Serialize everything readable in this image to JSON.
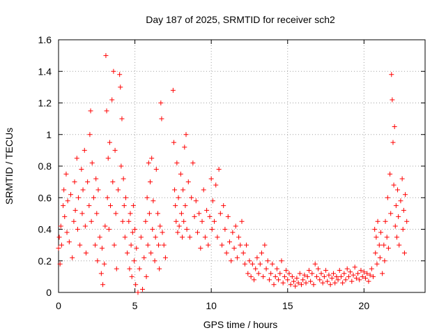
{
  "chart_data": {
    "type": "scatter",
    "title": "Day 187 of 2025, SRMTID for receiver sch2",
    "xlabel": "GPS time / hours",
    "ylabel": "SRMTID / TECUs",
    "xlim": [
      0,
      24
    ],
    "ylim": [
      0,
      1.6
    ],
    "grid": true,
    "marker": "+",
    "series_color": "#ff0000",
    "x_ticks": [
      {
        "value": 0,
        "label": "0"
      },
      {
        "value": 5,
        "label": "5"
      },
      {
        "value": 10,
        "label": "10"
      },
      {
        "value": 15,
        "label": "15"
      },
      {
        "value": 20,
        "label": "20"
      }
    ],
    "y_ticks": [
      {
        "value": 0,
        "label": "0"
      },
      {
        "value": 0.2,
        "label": "0.2"
      },
      {
        "value": 0.4,
        "label": "0.4"
      },
      {
        "value": 0.6,
        "label": "0.6"
      },
      {
        "value": 0.8,
        "label": "0.8"
      },
      {
        "value": 1.0,
        "label": "1"
      },
      {
        "value": 1.2,
        "label": "1.2"
      },
      {
        "value": 1.4,
        "label": "1.4"
      },
      {
        "value": 1.6,
        "label": "1.6"
      }
    ],
    "series": [
      {
        "name": "SRMTID",
        "points": [
          [
            0.0,
            0.28
          ],
          [
            0.05,
            0.35
          ],
          [
            0.1,
            0.18
          ],
          [
            0.15,
            0.42
          ],
          [
            0.2,
            0.3
          ],
          [
            0.3,
            0.55
          ],
          [
            0.35,
            0.65
          ],
          [
            0.4,
            0.48
          ],
          [
            0.5,
            0.75
          ],
          [
            0.55,
            0.38
          ],
          [
            0.6,
            0.58
          ],
          [
            0.7,
            0.32
          ],
          [
            0.8,
            0.62
          ],
          [
            0.9,
            0.22
          ],
          [
            1.0,
            0.45
          ],
          [
            1.05,
            0.7
          ],
          [
            1.1,
            0.52
          ],
          [
            1.2,
            0.85
          ],
          [
            1.25,
            0.4
          ],
          [
            1.3,
            0.6
          ],
          [
            1.4,
            0.3
          ],
          [
            1.5,
            0.78
          ],
          [
            1.55,
            0.5
          ],
          [
            1.6,
            0.65
          ],
          [
            1.7,
            0.9
          ],
          [
            1.75,
            0.42
          ],
          [
            1.8,
            0.25
          ],
          [
            1.9,
            0.7
          ],
          [
            2.0,
            0.55
          ],
          [
            2.05,
            1.0
          ],
          [
            2.1,
            1.15
          ],
          [
            2.15,
            0.45
          ],
          [
            2.2,
            0.82
          ],
          [
            2.3,
            0.6
          ],
          [
            2.4,
            0.3
          ],
          [
            2.45,
            0.72
          ],
          [
            2.5,
            0.5
          ],
          [
            2.55,
            0.2
          ],
          [
            2.6,
            0.65
          ],
          [
            2.7,
            0.35
          ],
          [
            2.8,
            0.12
          ],
          [
            2.85,
            0.28
          ],
          [
            2.9,
            0.05
          ],
          [
            3.0,
            0.18
          ],
          [
            3.05,
            0.42
          ],
          [
            3.1,
            1.5
          ],
          [
            3.15,
            1.15
          ],
          [
            3.2,
            0.6
          ],
          [
            3.25,
            0.85
          ],
          [
            3.3,
            0.4
          ],
          [
            3.35,
            0.95
          ],
          [
            3.4,
            0.55
          ],
          [
            3.5,
            1.22
          ],
          [
            3.55,
            0.7
          ],
          [
            3.6,
            1.4
          ],
          [
            3.65,
            0.3
          ],
          [
            3.7,
            0.9
          ],
          [
            3.75,
            0.5
          ],
          [
            3.8,
            0.15
          ],
          [
            3.9,
            0.65
          ],
          [
            4.0,
            1.38
          ],
          [
            4.05,
            1.3
          ],
          [
            4.1,
            0.8
          ],
          [
            4.15,
            1.1
          ],
          [
            4.2,
            0.45
          ],
          [
            4.25,
            0.72
          ],
          [
            4.3,
            0.55
          ],
          [
            4.35,
            0.35
          ],
          [
            4.4,
            0.6
          ],
          [
            4.5,
            0.25
          ],
          [
            4.6,
            0.45
          ],
          [
            4.65,
            0.15
          ],
          [
            4.7,
            0.5
          ],
          [
            4.75,
            0.3
          ],
          [
            4.8,
            0.1
          ],
          [
            4.85,
            0.38
          ],
          [
            4.9,
            0.55
          ],
          [
            4.95,
            0.2
          ],
          [
            5.0,
            0.4
          ],
          [
            5.05,
            0.05
          ],
          [
            5.1,
            0.28
          ],
          [
            5.2,
            0.0
          ],
          [
            5.3,
            0.15
          ],
          [
            5.4,
            0.35
          ],
          [
            5.5,
            0.02
          ],
          [
            5.6,
            0.22
          ],
          [
            5.7,
            0.45
          ],
          [
            5.75,
            0.1
          ],
          [
            5.8,
            0.6
          ],
          [
            5.85,
            0.3
          ],
          [
            5.9,
            0.82
          ],
          [
            5.95,
            0.5
          ],
          [
            6.0,
            0.7
          ],
          [
            6.05,
            0.25
          ],
          [
            6.1,
            0.85
          ],
          [
            6.15,
            0.4
          ],
          [
            6.2,
            0.58
          ],
          [
            6.3,
            0.2
          ],
          [
            6.35,
            0.35
          ],
          [
            6.4,
            0.78
          ],
          [
            6.5,
            0.5
          ],
          [
            6.55,
            0.3
          ],
          [
            6.6,
            0.15
          ],
          [
            6.65,
            0.42
          ],
          [
            6.7,
            1.2
          ],
          [
            6.75,
            1.1
          ],
          [
            6.8,
            0.38
          ],
          [
            6.9,
            0.3
          ],
          [
            7.0,
            0.22
          ],
          [
            7.5,
            1.28
          ],
          [
            7.55,
            0.95
          ],
          [
            7.6,
            0.65
          ],
          [
            7.65,
            0.55
          ],
          [
            7.7,
            0.45
          ],
          [
            7.75,
            0.82
          ],
          [
            7.8,
            0.38
          ],
          [
            7.85,
            0.6
          ],
          [
            7.9,
            0.42
          ],
          [
            8.0,
            0.75
          ],
          [
            8.05,
            0.5
          ],
          [
            8.1,
            0.35
          ],
          [
            8.15,
            0.65
          ],
          [
            8.2,
            0.45
          ],
          [
            8.25,
            0.92
          ],
          [
            8.3,
            0.55
          ],
          [
            8.35,
            1.0
          ],
          [
            8.4,
            0.4
          ],
          [
            8.5,
            0.7
          ],
          [
            8.6,
            0.35
          ],
          [
            8.7,
            0.6
          ],
          [
            8.8,
            0.82
          ],
          [
            8.9,
            0.48
          ],
          [
            9.0,
            0.58
          ],
          [
            9.1,
            0.38
          ],
          [
            9.2,
            0.5
          ],
          [
            9.3,
            0.28
          ],
          [
            9.4,
            0.45
          ],
          [
            9.5,
            0.65
          ],
          [
            9.6,
            0.35
          ],
          [
            9.7,
            0.52
          ],
          [
            9.8,
            0.3
          ],
          [
            9.9,
            0.48
          ],
          [
            10.0,
            0.72
          ],
          [
            10.05,
            0.4
          ],
          [
            10.1,
            0.58
          ],
          [
            10.2,
            0.45
          ],
          [
            10.3,
            0.68
          ],
          [
            10.4,
            0.35
          ],
          [
            10.5,
            0.78
          ],
          [
            10.6,
            0.5
          ],
          [
            10.7,
            0.3
          ],
          [
            10.8,
            0.55
          ],
          [
            10.9,
            0.4
          ],
          [
            11.0,
            0.25
          ],
          [
            11.1,
            0.48
          ],
          [
            11.2,
            0.32
          ],
          [
            11.3,
            0.2
          ],
          [
            11.4,
            0.38
          ],
          [
            11.5,
            0.28
          ],
          [
            11.6,
            0.42
          ],
          [
            11.7,
            0.22
          ],
          [
            11.8,
            0.35
          ],
          [
            11.9,
            0.3
          ],
          [
            12.0,
            0.45
          ],
          [
            12.1,
            0.25
          ],
          [
            12.2,
            0.18
          ],
          [
            12.3,
            0.3
          ],
          [
            12.4,
            0.12
          ],
          [
            12.5,
            0.2
          ],
          [
            12.6,
            0.1
          ],
          [
            12.7,
            0.18
          ],
          [
            12.8,
            0.08
          ],
          [
            12.9,
            0.15
          ],
          [
            13.0,
            0.22
          ],
          [
            13.1,
            0.12
          ],
          [
            13.2,
            0.18
          ],
          [
            13.3,
            0.25
          ],
          [
            13.4,
            0.1
          ],
          [
            13.5,
            0.3
          ],
          [
            13.6,
            0.15
          ],
          [
            13.7,
            0.2
          ],
          [
            13.8,
            0.08
          ],
          [
            13.9,
            0.12
          ],
          [
            14.0,
            0.18
          ],
          [
            14.1,
            0.05
          ],
          [
            14.2,
            0.1
          ],
          [
            14.3,
            0.15
          ],
          [
            14.4,
            0.08
          ],
          [
            14.5,
            0.12
          ],
          [
            14.6,
            0.2
          ],
          [
            14.7,
            0.06
          ],
          [
            14.8,
            0.1
          ],
          [
            14.9,
            0.14
          ],
          [
            15.0,
            0.08
          ],
          [
            15.1,
            0.12
          ],
          [
            15.2,
            0.05
          ],
          [
            15.3,
            0.1
          ],
          [
            15.4,
            0.07
          ],
          [
            15.5,
            0.04
          ],
          [
            15.6,
            0.09
          ],
          [
            15.7,
            0.06
          ],
          [
            15.8,
            0.12
          ],
          [
            15.9,
            0.05
          ],
          [
            16.0,
            0.08
          ],
          [
            16.1,
            0.11
          ],
          [
            16.2,
            0.06
          ],
          [
            16.3,
            0.1
          ],
          [
            16.4,
            0.14
          ],
          [
            16.5,
            0.07
          ],
          [
            16.6,
            0.12
          ],
          [
            16.7,
            0.05
          ],
          [
            16.8,
            0.18
          ],
          [
            16.9,
            0.1
          ],
          [
            17.0,
            0.15
          ],
          [
            17.1,
            0.08
          ],
          [
            17.2,
            0.12
          ],
          [
            17.3,
            0.06
          ],
          [
            17.4,
            0.1
          ],
          [
            17.5,
            0.14
          ],
          [
            17.6,
            0.07
          ],
          [
            17.7,
            0.11
          ],
          [
            17.8,
            0.05
          ],
          [
            17.9,
            0.09
          ],
          [
            18.0,
            0.12
          ],
          [
            18.1,
            0.06
          ],
          [
            18.2,
            0.1
          ],
          [
            18.3,
            0.08
          ],
          [
            18.4,
            0.14
          ],
          [
            18.5,
            0.1
          ],
          [
            18.6,
            0.06
          ],
          [
            18.7,
            0.12
          ],
          [
            18.8,
            0.08
          ],
          [
            18.9,
            0.15
          ],
          [
            19.0,
            0.1
          ],
          [
            19.1,
            0.13
          ],
          [
            19.2,
            0.07
          ],
          [
            19.3,
            0.11
          ],
          [
            19.4,
            0.16
          ],
          [
            19.5,
            0.09
          ],
          [
            19.6,
            0.12
          ],
          [
            19.7,
            0.08
          ],
          [
            19.8,
            0.14
          ],
          [
            19.9,
            0.1
          ],
          [
            20.0,
            0.13
          ],
          [
            20.1,
            0.09
          ],
          [
            20.2,
            0.12
          ],
          [
            20.3,
            0.07
          ],
          [
            20.4,
            0.11
          ],
          [
            20.5,
            0.15
          ],
          [
            20.6,
            0.1
          ],
          [
            20.7,
            0.4
          ],
          [
            20.75,
            0.25
          ],
          [
            20.8,
            0.35
          ],
          [
            20.85,
            0.18
          ],
          [
            20.9,
            0.45
          ],
          [
            21.0,
            0.3
          ],
          [
            21.05,
            0.22
          ],
          [
            21.1,
            0.38
          ],
          [
            21.2,
            0.12
          ],
          [
            21.3,
            0.3
          ],
          [
            21.35,
            0.2
          ],
          [
            21.4,
            0.45
          ],
          [
            21.5,
            0.35
          ],
          [
            21.55,
            0.6
          ],
          [
            21.6,
            0.28
          ],
          [
            21.7,
            0.75
          ],
          [
            21.75,
            0.5
          ],
          [
            21.8,
            1.38
          ],
          [
            21.85,
            1.22
          ],
          [
            21.9,
            0.95
          ],
          [
            21.95,
            0.68
          ],
          [
            22.0,
            1.05
          ],
          [
            22.05,
            0.42
          ],
          [
            22.1,
            0.55
          ],
          [
            22.15,
            0.35
          ],
          [
            22.2,
            0.65
          ],
          [
            22.25,
            0.48
          ],
          [
            22.3,
            0.3
          ],
          [
            22.4,
            0.58
          ],
          [
            22.5,
            0.72
          ],
          [
            22.55,
            0.4
          ],
          [
            22.6,
            0.52
          ],
          [
            22.65,
            0.25
          ],
          [
            22.7,
            0.62
          ],
          [
            22.8,
            0.45
          ]
        ]
      }
    ]
  }
}
